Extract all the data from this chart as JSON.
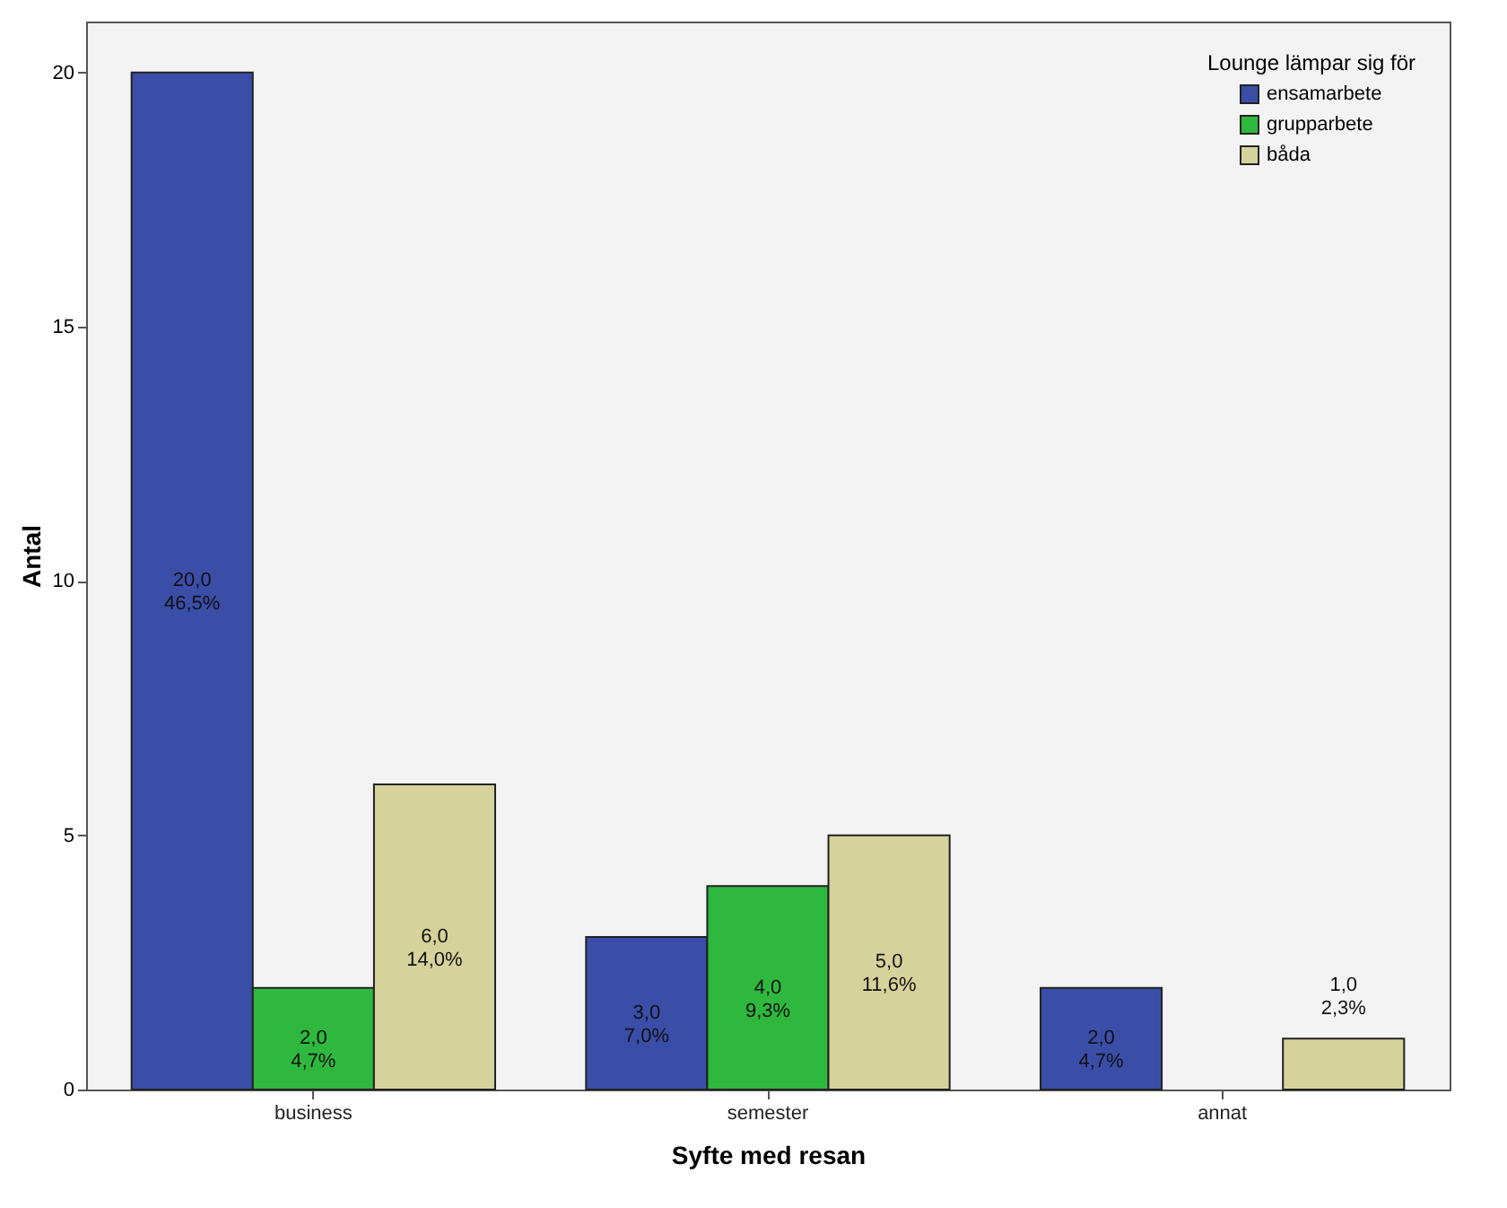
{
  "chart_data": {
    "type": "bar",
    "xlabel": "Syfte med resan",
    "ylabel": "Antal",
    "legend_title": "Lounge lämpar sig för",
    "categories": [
      "business",
      "semester",
      "annat"
    ],
    "series": [
      {
        "name": "ensamarbete",
        "color": "#3a4ea8",
        "values": [
          20,
          3,
          2
        ],
        "value_labels": [
          "20,0\n46,5%",
          "3,0\n7,0%",
          "2,0\n4,7%"
        ]
      },
      {
        "name": "grupparbete",
        "color": "#2fb83e",
        "values": [
          2,
          4,
          null
        ],
        "value_labels": [
          "2,0\n4,7%",
          "4,0\n9,3%",
          null
        ]
      },
      {
        "name": "båda",
        "color": "#d6d29b",
        "values": [
          6,
          5,
          1
        ],
        "value_labels": [
          "6,0\n14,0%",
          "5,0\n11,6%",
          "1,0\n2,3%"
        ]
      }
    ],
    "ylim": [
      0,
      21
    ],
    "yticks": [
      0,
      5,
      10,
      15,
      20
    ],
    "grid": false,
    "legend": "top right"
  }
}
